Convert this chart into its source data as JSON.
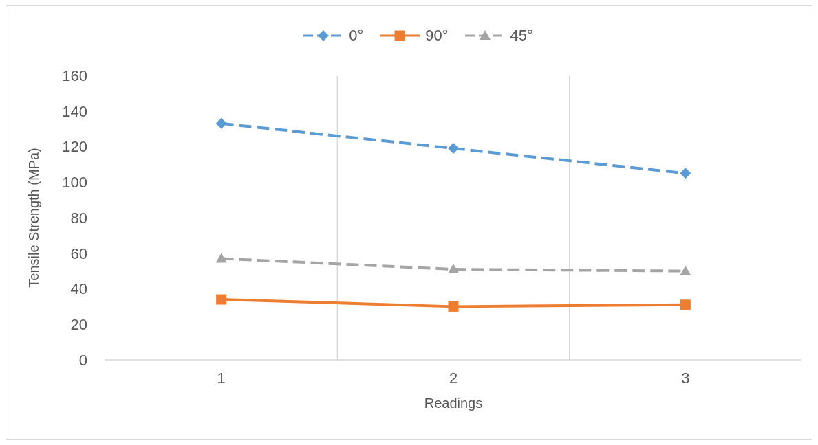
{
  "chart_data": {
    "type": "line",
    "xlabel": "Readings",
    "ylabel": "Tensile Strength (MPa)",
    "x": [
      1,
      2,
      3
    ],
    "xlim": [
      0.5,
      3.5
    ],
    "xticks": [
      1,
      {
        "value": 1.5,
        "label": null
      },
      2,
      {
        "value": 2.5,
        "label": null
      },
      3
    ],
    "series": [
      {
        "name": "0°",
        "color": "#5b9bd5",
        "values": [
          133,
          119,
          105
        ],
        "marker": "diamond",
        "line_style": "dashed"
      },
      {
        "name": "90°",
        "color": "#ed7d31",
        "values": [
          34,
          30,
          31
        ],
        "marker": "square",
        "line_style": "solid"
      },
      {
        "name": "45°",
        "color": "#a5a5a5",
        "values": [
          57,
          51,
          50
        ],
        "marker": "triangle",
        "line_style": "dashed"
      }
    ],
    "ylim": [
      0,
      160
    ],
    "yticks": [
      0,
      20,
      40,
      60,
      80,
      100,
      120,
      140,
      160
    ],
    "grid": "x",
    "legend": "top"
  }
}
